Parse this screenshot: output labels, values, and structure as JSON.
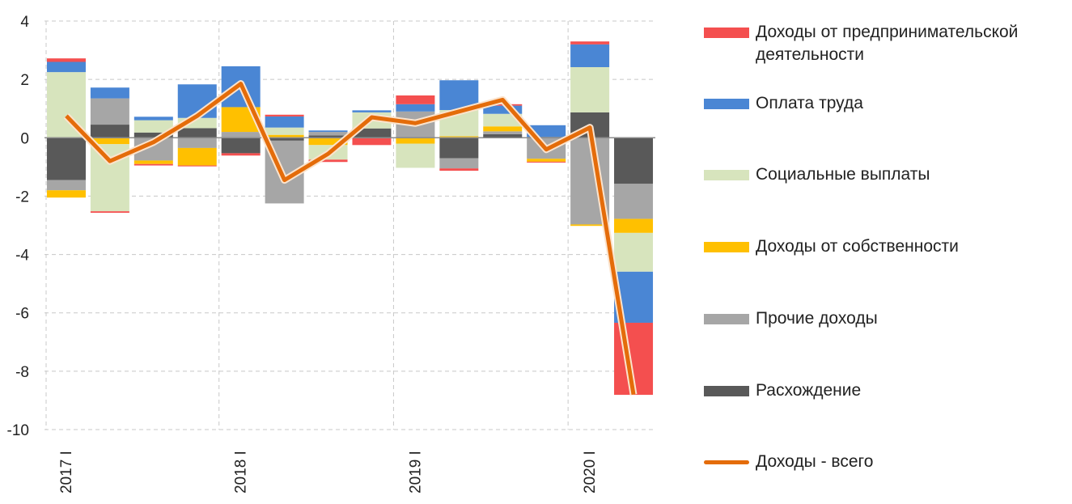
{
  "chart_data": {
    "type": "bar",
    "stacked": true,
    "categories": [
      "2017 I",
      "",
      "",
      "",
      "2018 I",
      "",
      "",
      "",
      "2019 I",
      "",
      "",
      "",
      "2020 I",
      ""
    ],
    "ylim": [
      -10,
      4
    ],
    "yticks": [
      4,
      2,
      0,
      -2,
      -4,
      -6,
      -8,
      -10
    ],
    "grid": true,
    "legend_position": "right",
    "series": [
      {
        "name": "Расхождение",
        "color": "#595959",
        "values": [
          -1.45,
          0.45,
          0.18,
          0.33,
          -0.53,
          -0.1,
          0.08,
          0.32,
          0.03,
          -0.7,
          0.12,
          0.03,
          0.87,
          -1.58
        ]
      },
      {
        "name": "Прочие доходы",
        "color": "#a6a6a6",
        "values": [
          -0.35,
          0.9,
          -0.78,
          -0.35,
          0.2,
          -2.15,
          0.12,
          0,
          0.87,
          -0.35,
          0.1,
          -0.72,
          -2.97,
          -1.2
        ]
      },
      {
        "name": "Доходы от собственности",
        "color": "#ffc000",
        "values": [
          -0.25,
          -0.22,
          -0.12,
          -0.6,
          0.85,
          0.1,
          -0.25,
          0,
          -0.2,
          0.05,
          0.17,
          -0.1,
          -0.05,
          -0.48
        ]
      },
      {
        "name": "Социальные выплаты",
        "color": "#d7e4bd",
        "values": [
          2.25,
          -2.3,
          0.42,
          0.35,
          0,
          0.25,
          -0.5,
          0.55,
          -0.83,
          0.9,
          0.43,
          0,
          1.55,
          -1.33
        ]
      },
      {
        "name": "Оплата труда",
        "color": "#4a86d4",
        "values": [
          0.35,
          0.37,
          0.12,
          1.15,
          1.4,
          0.38,
          0.05,
          0.07,
          0.25,
          1.02,
          0.28,
          0.4,
          0.78,
          -1.75
        ]
      },
      {
        "name": "Доходы от предпринимательской деятельности",
        "color": "#f44f4f",
        "values": [
          0.12,
          -0.05,
          -0.05,
          -0.03,
          -0.08,
          0.06,
          -0.08,
          -0.25,
          0.3,
          -0.08,
          0.05,
          -0.03,
          0.1,
          -2.47
        ]
      }
    ],
    "line": {
      "name": "Доходы - всего",
      "color": "#e46c0a",
      "values": [
        0.75,
        -0.8,
        -0.15,
        0.75,
        1.85,
        -1.45,
        -0.55,
        0.7,
        0.5,
        0.9,
        1.3,
        -0.4,
        0.35,
        -8.8
      ]
    }
  },
  "legend": [
    {
      "label": "Доходы от предпринимательской деятельности",
      "color": "#f44f4f",
      "kind": "bar"
    },
    {
      "label": "Оплата труда",
      "color": "#4a86d4",
      "kind": "bar"
    },
    {
      "label": "Социальные выплаты",
      "color": "#d7e4bd",
      "kind": "bar"
    },
    {
      "label": "Доходы от собственности",
      "color": "#ffc000",
      "kind": "bar"
    },
    {
      "label": "Прочие доходы",
      "color": "#a6a6a6",
      "kind": "bar"
    },
    {
      "label": "Расхождение",
      "color": "#595959",
      "kind": "bar"
    },
    {
      "label": "Доходы - всего",
      "color": "#e46c0a",
      "kind": "line"
    }
  ]
}
